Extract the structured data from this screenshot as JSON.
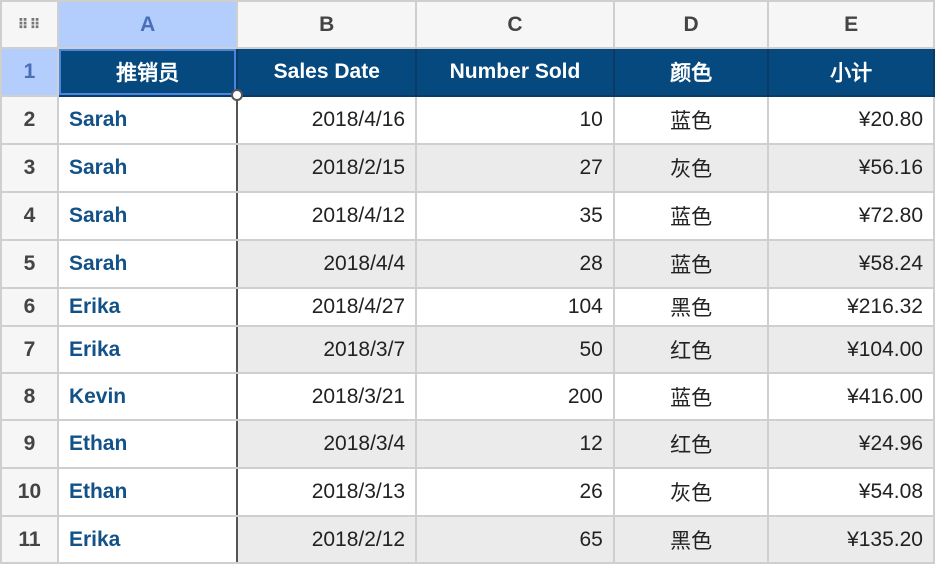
{
  "column_headers": [
    "A",
    "B",
    "C",
    "D",
    "E"
  ],
  "corner_icon": "select-all-grid-icon",
  "header_row": {
    "row_number": "1",
    "cells": [
      "推销员",
      "Sales Date",
      "Number Sold",
      "颜色",
      "小计"
    ]
  },
  "rows": [
    {
      "n": "2",
      "name": "Sarah",
      "date": "2018/4/16",
      "sold": "10",
      "color": "蓝色",
      "subtotal": "¥20.80"
    },
    {
      "n": "3",
      "name": "Sarah",
      "date": "2018/2/15",
      "sold": "27",
      "color": "灰色",
      "subtotal": "¥56.16"
    },
    {
      "n": "4",
      "name": "Sarah",
      "date": "2018/4/12",
      "sold": "35",
      "color": "蓝色",
      "subtotal": "¥72.80"
    },
    {
      "n": "5",
      "name": "Sarah",
      "date": "2018/4/4",
      "sold": "28",
      "color": "蓝色",
      "subtotal": "¥58.24"
    },
    {
      "n": "6",
      "name": "Erika",
      "date": "2018/4/27",
      "sold": "104",
      "color": "黑色",
      "subtotal": "¥216.32"
    },
    {
      "n": "7",
      "name": "Erika",
      "date": "2018/3/7",
      "sold": "50",
      "color": "红色",
      "subtotal": "¥104.00"
    },
    {
      "n": "8",
      "name": "Kevin",
      "date": "2018/3/21",
      "sold": "200",
      "color": "蓝色",
      "subtotal": "¥416.00"
    },
    {
      "n": "9",
      "name": "Ethan",
      "date": "2018/3/4",
      "sold": "12",
      "color": "红色",
      "subtotal": "¥24.96"
    },
    {
      "n": "10",
      "name": "Ethan",
      "date": "2018/3/13",
      "sold": "26",
      "color": "灰色",
      "subtotal": "¥54.08"
    },
    {
      "n": "11",
      "name": "Erika",
      "date": "2018/2/12",
      "sold": "65",
      "color": "黑色",
      "subtotal": "¥135.20"
    }
  ],
  "colors": {
    "header_bg": "#05497f",
    "name_text": "#125288",
    "selection": "#b3cdfc",
    "alt_row": "#ebebeb"
  }
}
